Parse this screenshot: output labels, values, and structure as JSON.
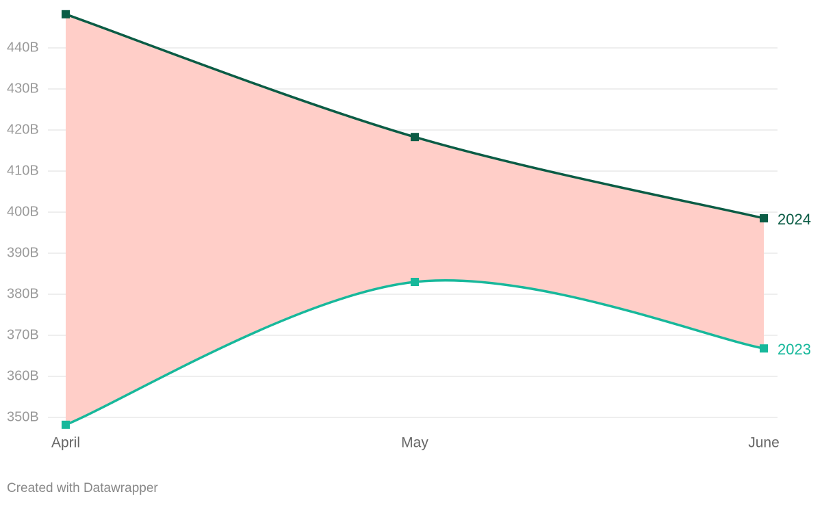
{
  "chart_data": {
    "type": "line",
    "categories": [
      "April",
      "May",
      "June"
    ],
    "series": [
      {
        "name": "2024",
        "color": "#0b5c45",
        "values": [
          448.2,
          418.3,
          398.5
        ]
      },
      {
        "name": "2023",
        "color": "#17b89b",
        "values": [
          348.2,
          383.0,
          366.8
        ]
      }
    ],
    "band_color": "#ffcec8",
    "ylim": [
      347,
      449
    ],
    "yticks": [
      {
        "value": 350,
        "label": "350B"
      },
      {
        "value": 360,
        "label": "360B"
      },
      {
        "value": 370,
        "label": "370B"
      },
      {
        "value": 380,
        "label": "380B"
      },
      {
        "value": 390,
        "label": "390B"
      },
      {
        "value": 400,
        "label": "400B"
      },
      {
        "value": 410,
        "label": "410B"
      },
      {
        "value": 420,
        "label": "420B"
      },
      {
        "value": 430,
        "label": "430B"
      },
      {
        "value": 440,
        "label": "440B"
      }
    ],
    "grid": true,
    "footer": "Created with Datawrapper"
  }
}
